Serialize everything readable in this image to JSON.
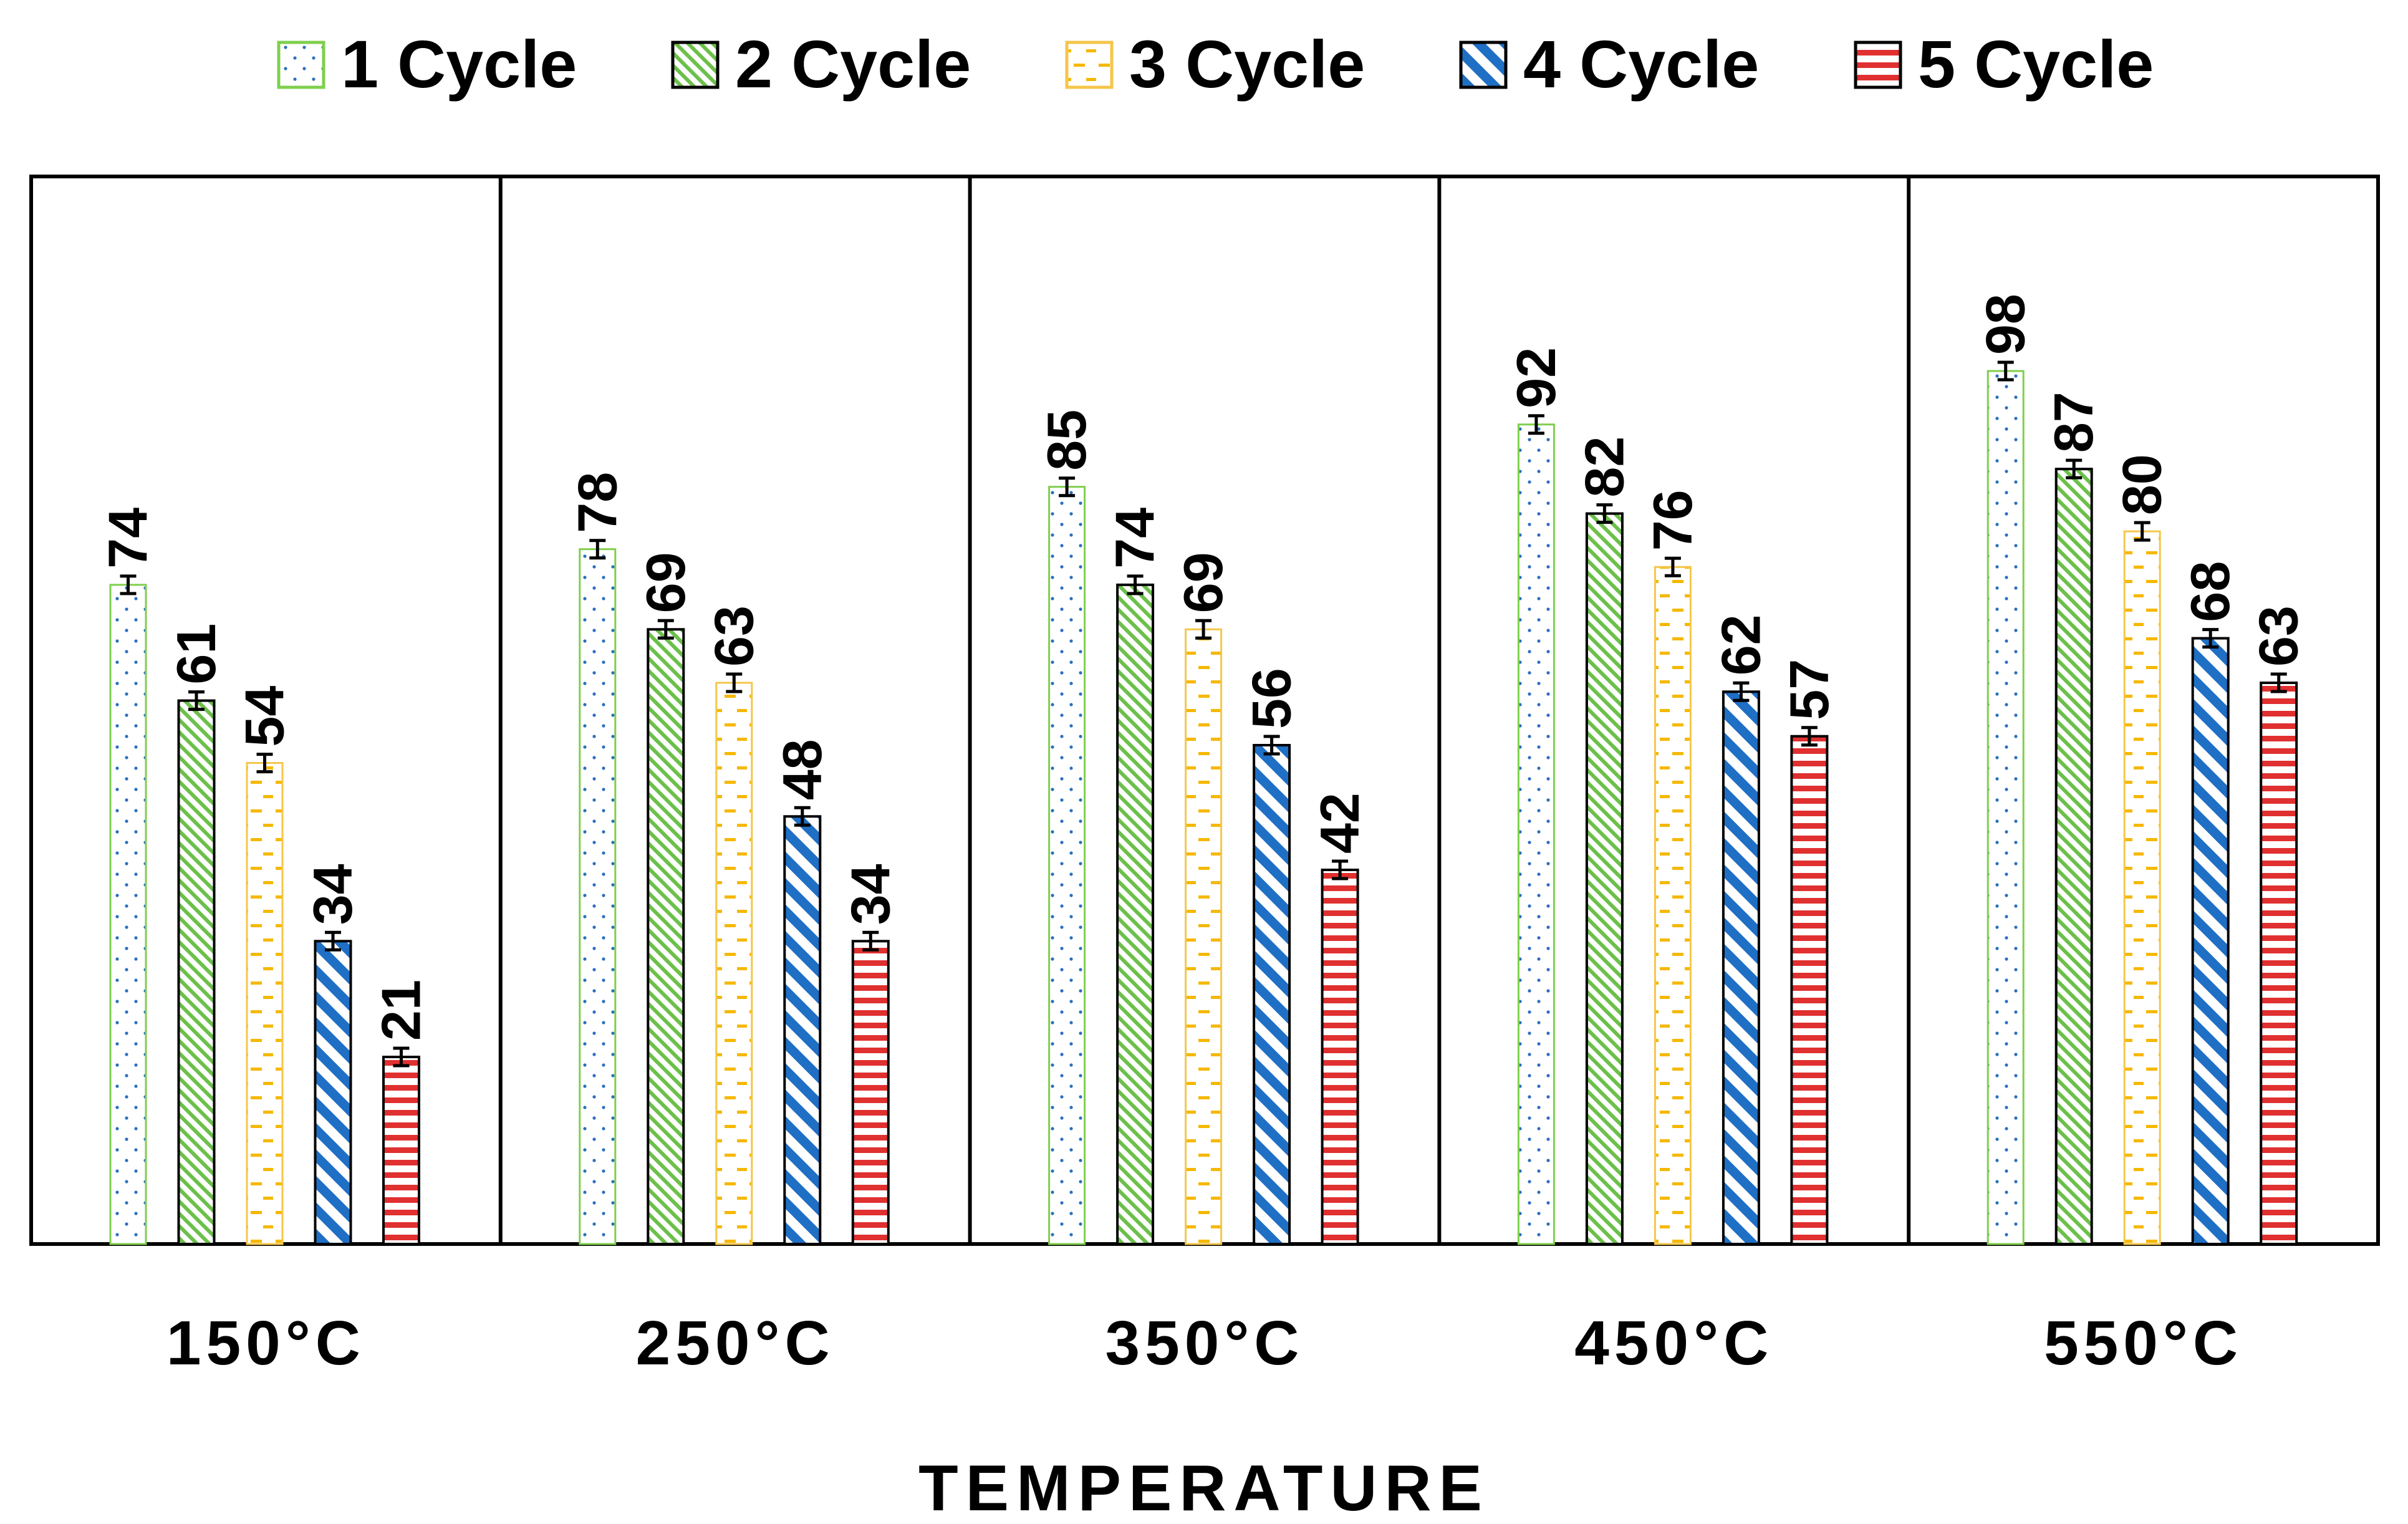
{
  "chart_data": {
    "type": "bar",
    "title": "",
    "xlabel": "TEMPERATURE",
    "ylabel": "",
    "ylim": [
      0,
      100
    ],
    "grid": false,
    "legend_position": "top",
    "categories": [
      "150°C",
      "250°C",
      "350°C",
      "450°C",
      "550°C"
    ],
    "error_bars": true,
    "series": [
      {
        "name": "1 Cycle",
        "values": [
          74,
          78,
          85,
          92,
          98
        ],
        "color": "#7fcf4d",
        "pattern": "dots"
      },
      {
        "name": "2 Cycle",
        "values": [
          61,
          69,
          74,
          82,
          87
        ],
        "color": "#6cc04a",
        "pattern": "diagonal-fine"
      },
      {
        "name": "3 Cycle",
        "values": [
          54,
          63,
          69,
          76,
          80
        ],
        "color": "#f5b800",
        "pattern": "dashes"
      },
      {
        "name": "4 Cycle",
        "values": [
          34,
          48,
          56,
          62,
          68
        ],
        "color": "#1f6fc5",
        "pattern": "diagonal-wide"
      },
      {
        "name": "5 Cycle",
        "values": [
          21,
          34,
          42,
          57,
          63
        ],
        "color": "#e03030",
        "pattern": "horizontal"
      }
    ]
  }
}
